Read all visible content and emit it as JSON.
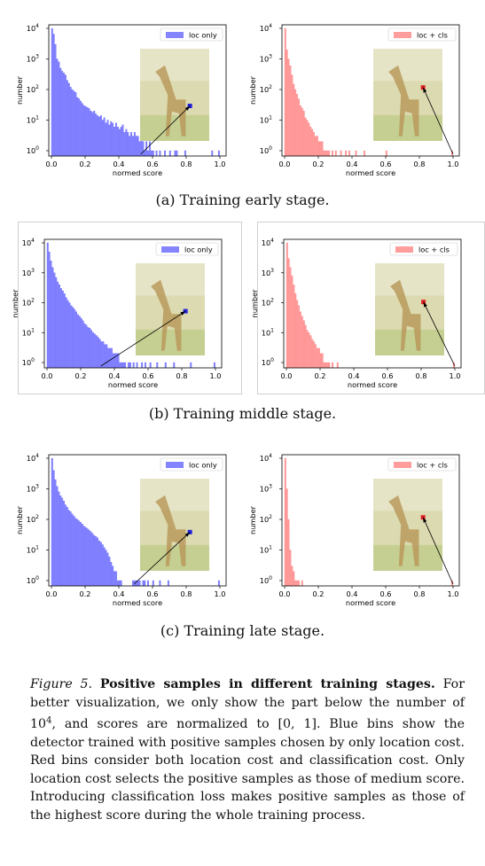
{
  "figure": {
    "label": "Figure 5.",
    "title": "Positive samples in different training stages.",
    "body": "For better visualization, we only show the part below the number of 10^4, and scores are normalized to [0, 1]. Blue bins show the detector trained with positive samples chosen by only location cost. Red bins consider both location cost and classification cost. Only location cost selects the positive samples as those of medium score. Introducing classification loss makes positive samples as those of the highest score during the whole training process."
  },
  "subcaptions": [
    "(a) Training early stage.",
    "(b) Training middle stage.",
    "(c) Training late stage."
  ],
  "colors": {
    "blue": "#5b5bff",
    "red": "#ff7b7b"
  },
  "chart_data": [
    {
      "type": "bar",
      "stage": "early",
      "legend": "loc only",
      "color": "blue",
      "xlabel": "normed score",
      "ylabel": "number",
      "xlim": [
        0,
        1
      ],
      "ylim": [
        1,
        10000
      ],
      "yscale": "log",
      "xticks": [
        "0.0",
        "0.2",
        "0.4",
        "0.6",
        "0.8",
        "1.0"
      ],
      "yticks": [
        "10^0",
        "10^1",
        "10^2",
        "10^3",
        "10^4"
      ],
      "bin_width": 0.01,
      "values": [
        10000,
        6500,
        3000,
        1000,
        800,
        500,
        400,
        350,
        300,
        200,
        160,
        120,
        100,
        90,
        80,
        55,
        50,
        42,
        35,
        30,
        28,
        26,
        24,
        20,
        18,
        20,
        16,
        14,
        13,
        14,
        10,
        12,
        8,
        10,
        7,
        9,
        8,
        6,
        8,
        6,
        5,
        6,
        7,
        4,
        5,
        4,
        3,
        4,
        3,
        4,
        3,
        3,
        2,
        3,
        2,
        1,
        2,
        1,
        2,
        1,
        1,
        0,
        1,
        0,
        1,
        0,
        0,
        1,
        0,
        0,
        1,
        0,
        0,
        1,
        1,
        0,
        0,
        0,
        0,
        1,
        0,
        0,
        0,
        0,
        0,
        0,
        0,
        0,
        0,
        0,
        0,
        0,
        0,
        0,
        0,
        1,
        0,
        0,
        0,
        1
      ],
      "inset": {
        "marker": [
          0.72,
          0.62
        ]
      },
      "arrow_tail": [
        0.53,
        1
      ]
    },
    {
      "type": "bar",
      "stage": "early",
      "legend": "loc + cls",
      "color": "red",
      "xlabel": "normed score",
      "ylabel": "number",
      "xlim": [
        0,
        1
      ],
      "ylim": [
        1,
        10000
      ],
      "yscale": "log",
      "xticks": [
        "0.0",
        "0.2",
        "0.4",
        "0.6",
        "0.8",
        "1.0"
      ],
      "yticks": [
        "10^0",
        "10^1",
        "10^2",
        "10^3",
        "10^4"
      ],
      "bin_width": 0.01,
      "values": [
        10000,
        2000,
        1000,
        600,
        300,
        150,
        100,
        70,
        50,
        30,
        25,
        20,
        12,
        10,
        8,
        6,
        5,
        4,
        3,
        3,
        2,
        2,
        2,
        1,
        1,
        1,
        1,
        0,
        1,
        0,
        1,
        0,
        0,
        1,
        0,
        0,
        1,
        0,
        1,
        0,
        0,
        0,
        1,
        0,
        0,
        0,
        0,
        1,
        0,
        0,
        0,
        0,
        0,
        0,
        0,
        0,
        0,
        0,
        0,
        0,
        1,
        0,
        0,
        0,
        0,
        0,
        0,
        0,
        0,
        0,
        0,
        0,
        0,
        0,
        0,
        0,
        0,
        0,
        0,
        0,
        0,
        0,
        0,
        0,
        0,
        0,
        0,
        0,
        0,
        0,
        0,
        0,
        0,
        0,
        0,
        0,
        0,
        0,
        0,
        1
      ],
      "inset": {
        "marker": [
          0.72,
          0.42
        ]
      },
      "arrow_tail": [
        1.0,
        1
      ]
    },
    {
      "type": "bar",
      "stage": "middle",
      "legend": "loc only",
      "color": "blue",
      "xlabel": "normed score",
      "ylabel": "number",
      "xlim": [
        0,
        1
      ],
      "ylim": [
        1,
        10000
      ],
      "yscale": "log",
      "xticks": [
        "0.0",
        "0.2",
        "0.4",
        "0.6",
        "0.8",
        "1.0"
      ],
      "yticks": [
        "10^0",
        "10^1",
        "10^2",
        "10^3",
        "10^4"
      ],
      "bin_width": 0.01,
      "values": [
        10000,
        5000,
        2500,
        1500,
        1000,
        700,
        500,
        400,
        300,
        250,
        200,
        150,
        120,
        100,
        80,
        70,
        60,
        50,
        40,
        35,
        30,
        25,
        20,
        18,
        15,
        14,
        12,
        10,
        9,
        8,
        7,
        6,
        5,
        5,
        4,
        4,
        3,
        3,
        3,
        2,
        2,
        2,
        2,
        1,
        1,
        1,
        1,
        0,
        1,
        1,
        0,
        1,
        0,
        1,
        0,
        0,
        1,
        0,
        1,
        0,
        0,
        1,
        0,
        0,
        0,
        1,
        0,
        0,
        0,
        0,
        1,
        0,
        0,
        0,
        0,
        1,
        0,
        0,
        0,
        0,
        0,
        0,
        0,
        0,
        0,
        1,
        0,
        0,
        0,
        0,
        0,
        0,
        0,
        0,
        0,
        0,
        0,
        0,
        0,
        1
      ],
      "inset": {
        "marker": [
          0.72,
          0.52
        ]
      },
      "arrow_tail": [
        0.32,
        1
      ]
    },
    {
      "type": "bar",
      "stage": "middle",
      "legend": "loc + cls",
      "color": "red",
      "xlabel": "normed score",
      "ylabel": "number",
      "xlim": [
        0,
        1
      ],
      "ylim": [
        1,
        10000
      ],
      "yscale": "log",
      "xticks": [
        "0.0",
        "0.2",
        "0.4",
        "0.6",
        "0.8",
        "1.0"
      ],
      "yticks": [
        "10^0",
        "10^1",
        "10^2",
        "10^3",
        "10^4"
      ],
      "bin_width": 0.01,
      "values": [
        10000,
        3000,
        1500,
        800,
        400,
        200,
        120,
        80,
        50,
        35,
        25,
        18,
        12,
        10,
        8,
        6,
        5,
        4,
        3,
        3,
        2,
        2,
        1,
        1,
        1,
        1,
        0,
        1,
        0,
        0,
        1,
        0,
        0,
        0,
        0,
        0,
        0,
        0,
        0,
        0,
        0,
        0,
        0,
        0,
        0,
        0,
        0,
        0,
        0,
        0,
        0,
        0,
        0,
        0,
        0,
        0,
        0,
        0,
        0,
        0,
        0,
        0,
        0,
        0,
        0,
        0,
        0,
        0,
        0,
        0,
        0,
        0,
        0,
        0,
        0,
        0,
        0,
        0,
        0,
        0,
        0,
        0,
        0,
        0,
        0,
        0,
        0,
        0,
        0,
        0,
        0,
        0,
        0,
        0,
        0,
        0,
        0,
        0,
        0,
        1
      ],
      "inset": {
        "marker": [
          0.7,
          0.42
        ]
      },
      "arrow_tail": [
        1.0,
        1
      ]
    },
    {
      "type": "bar",
      "stage": "late",
      "legend": "loc only",
      "color": "blue",
      "xlabel": "normed score",
      "ylabel": "number",
      "xlim": [
        0,
        1
      ],
      "ylim": [
        1,
        10000
      ],
      "yscale": "log",
      "xticks": [
        "0.0",
        "0.2",
        "0.4",
        "0.6",
        "0.8",
        "1.0"
      ],
      "yticks": [
        "10^0",
        "10^1",
        "10^2",
        "10^3",
        "10^4"
      ],
      "bin_width": 0.01,
      "values": [
        10000,
        4000,
        2000,
        1200,
        800,
        600,
        500,
        400,
        300,
        250,
        200,
        180,
        150,
        130,
        110,
        100,
        90,
        80,
        70,
        60,
        55,
        50,
        45,
        40,
        35,
        30,
        28,
        25,
        20,
        18,
        15,
        12,
        10,
        8,
        6,
        4,
        3,
        2,
        2,
        1,
        1,
        1,
        0,
        0,
        0,
        0,
        0,
        0,
        1,
        1,
        1,
        1,
        1,
        0,
        1,
        1,
        0,
        1,
        0,
        0,
        1,
        0,
        0,
        0,
        1,
        0,
        0,
        0,
        0,
        1,
        0,
        0,
        0,
        0,
        0,
        0,
        0,
        0,
        0,
        0,
        0,
        0,
        0,
        0,
        0,
        0,
        0,
        0,
        0,
        0,
        0,
        0,
        0,
        0,
        0,
        0,
        0,
        0,
        0,
        1
      ],
      "inset": {
        "marker": [
          0.72,
          0.58
        ]
      },
      "arrow_tail": [
        0.49,
        1
      ]
    },
    {
      "type": "bar",
      "stage": "late",
      "legend": "loc + cls",
      "color": "red",
      "xlabel": "normed score",
      "ylabel": "number",
      "xlim": [
        0,
        1
      ],
      "ylim": [
        1,
        10000
      ],
      "yscale": "log",
      "xticks": [
        "0.0",
        "0.2",
        "0.4",
        "0.6",
        "0.8",
        "1.0"
      ],
      "yticks": [
        "10^0",
        "10^1",
        "10^2",
        "10^3",
        "10^4"
      ],
      "bin_width": 0.01,
      "values": [
        10000,
        1000,
        100,
        10,
        3,
        2,
        1,
        1,
        1,
        0,
        1,
        0,
        0,
        0,
        0,
        0,
        0,
        0,
        0,
        0,
        0,
        0,
        0,
        0,
        0,
        0,
        0,
        0,
        0,
        0,
        0,
        0,
        0,
        0,
        0,
        0,
        0,
        0,
        0,
        0,
        0,
        0,
        0,
        0,
        0,
        0,
        0,
        0,
        0,
        0,
        0,
        0,
        0,
        0,
        0,
        0,
        0,
        0,
        0,
        0,
        0,
        0,
        0,
        0,
        0,
        0,
        0,
        0,
        0,
        0,
        0,
        0,
        0,
        0,
        0,
        0,
        0,
        0,
        0,
        0,
        0,
        0,
        0,
        0,
        0,
        0,
        0,
        0,
        0,
        0,
        0,
        0,
        0,
        0,
        0,
        0,
        0,
        0,
        0,
        1
      ],
      "inset": {
        "marker": [
          0.72,
          0.42
        ]
      },
      "arrow_tail": [
        1.0,
        1
      ]
    }
  ]
}
